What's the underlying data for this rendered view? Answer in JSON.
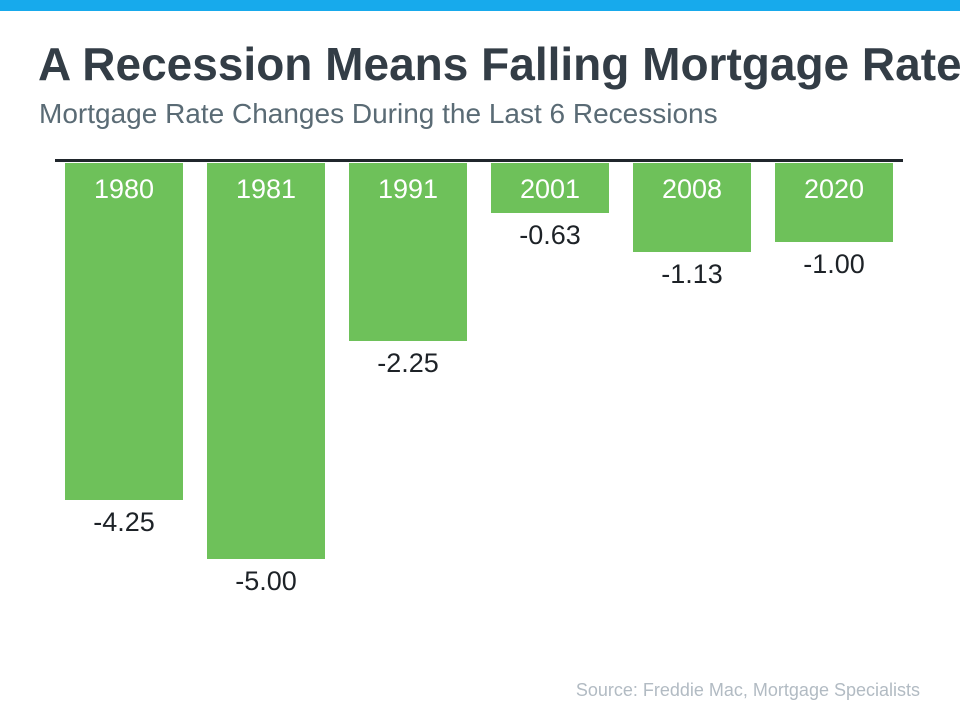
{
  "page": {
    "title": "A Recession Means Falling Mortgage Rates",
    "subtitle": "Mortgage Rate Changes During the Last 6 Recessions",
    "source": "Source: Freddie Mac, Mortgage Specialists"
  },
  "colors": {
    "top_strip": "#17aaec",
    "bar_green": "#6ec15a",
    "title_text": "#333d46",
    "subtitle_text": "#5a6b75",
    "baseline": "#20262c",
    "value_text": "#1d2227",
    "source_text": "#b2bbc3"
  },
  "chart_data": {
    "type": "bar",
    "title": "A Recession Means Falling Mortgage Rates",
    "subtitle": "Mortgage Rate Changes During the Last 6 Recessions",
    "categories": [
      "1980",
      "1981",
      "1991",
      "2001",
      "2008",
      "2020"
    ],
    "values": [
      -4.25,
      -5.0,
      -2.25,
      -0.63,
      -1.13,
      -1.0
    ],
    "value_labels": [
      "-4.25",
      "-5.00",
      "-2.25",
      "-0.63",
      "-1.13",
      "-1.00"
    ],
    "bar_color": "#6ec15a",
    "ylim": [
      -5,
      0
    ],
    "baseline_position": "top",
    "grid": false,
    "legend": "none",
    "category_label_position": "inside-top",
    "value_label_position": "below-bar",
    "source": "Source: Freddie Mac, Mortgage Specialists"
  }
}
